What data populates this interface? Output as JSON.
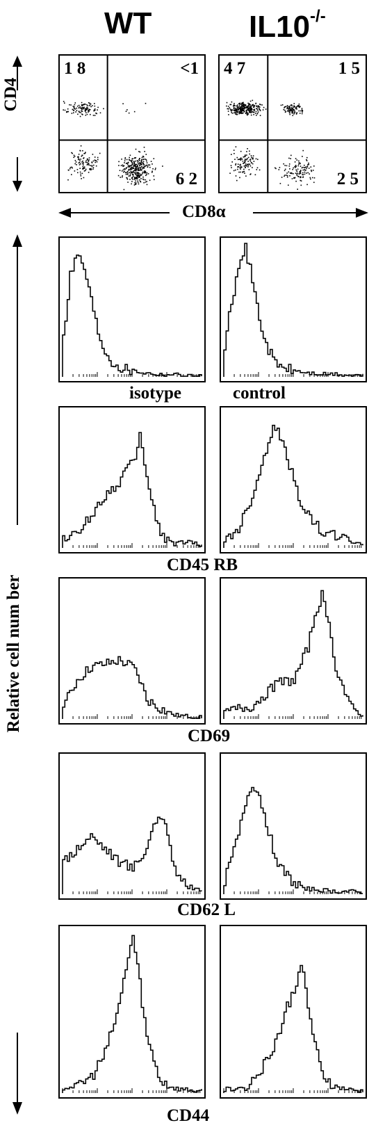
{
  "columns": [
    "WT",
    "IL10",
    "-/-"
  ],
  "dot_axes": {
    "y_label": "CD4",
    "x_label": "CD8α"
  },
  "histogram_y_label": "Relative   cell   num ber",
  "colors": {
    "ink": "#000000",
    "background": "#ffffff"
  },
  "chart_data": [
    {
      "type": "scatter",
      "panel": "WT",
      "y_axis": "CD4",
      "x_axis": "CD8α",
      "quadrants": {
        "upper_left": "1 8",
        "upper_right": "<1",
        "lower_left": "",
        "lower_right": "6 2"
      },
      "quadrant_percentages": {
        "upper_left": 18,
        "upper_right": 1,
        "lower_right": 62
      }
    },
    {
      "type": "scatter",
      "panel": "IL10-/-",
      "y_axis": "CD4",
      "x_axis": "CD8α",
      "quadrants": {
        "upper_left": "4 7",
        "upper_right": "1 5",
        "lower_left": "",
        "lower_right": "2 5"
      },
      "quadrant_percentages": {
        "upper_left": 47,
        "upper_right": 15,
        "lower_right": 25
      }
    },
    {
      "type": "line",
      "row_label_left": "isotype",
      "row_label_right": "control",
      "series": [
        {
          "name": "WT",
          "x": [
            0,
            0.05,
            0.1,
            0.15,
            0.2,
            0.25,
            0.3,
            0.35,
            0.4,
            0.5,
            0.6,
            0.7,
            0.8,
            0.9,
            1.0
          ],
          "values": [
            0.3,
            0.8,
            0.95,
            0.85,
            0.6,
            0.35,
            0.2,
            0.12,
            0.08,
            0.05,
            0.03,
            0.02,
            0.02,
            0.01,
            0.01
          ]
        },
        {
          "name": "IL10-/-",
          "x": [
            0,
            0.05,
            0.1,
            0.15,
            0.2,
            0.25,
            0.3,
            0.35,
            0.4,
            0.5,
            0.6,
            0.7,
            0.8,
            0.9,
            1.0
          ],
          "values": [
            0.2,
            0.6,
            0.8,
            1.0,
            0.75,
            0.45,
            0.25,
            0.14,
            0.08,
            0.05,
            0.03,
            0.02,
            0.02,
            0.01,
            0.01
          ]
        }
      ]
    },
    {
      "type": "line",
      "row_label": "CD45 RB",
      "series": [
        {
          "name": "WT",
          "x": [
            0,
            0.1,
            0.2,
            0.3,
            0.4,
            0.45,
            0.5,
            0.55,
            0.6,
            0.65,
            0.7,
            0.8,
            0.9,
            1.0
          ],
          "values": [
            0.08,
            0.1,
            0.25,
            0.4,
            0.5,
            0.6,
            0.65,
            0.85,
            0.55,
            0.3,
            0.1,
            0.03,
            0.05,
            0.02
          ]
        },
        {
          "name": "IL10-/-",
          "x": [
            0,
            0.1,
            0.2,
            0.3,
            0.35,
            0.4,
            0.45,
            0.5,
            0.55,
            0.6,
            0.7,
            0.8,
            0.9,
            1.0
          ],
          "values": [
            0.05,
            0.15,
            0.4,
            0.75,
            0.95,
            0.85,
            0.7,
            0.5,
            0.35,
            0.25,
            0.12,
            0.1,
            0.05,
            0.03
          ]
        }
      ]
    },
    {
      "type": "line",
      "row_label": "CD69",
      "series": [
        {
          "name": "WT",
          "x": [
            0,
            0.1,
            0.2,
            0.3,
            0.4,
            0.5,
            0.55,
            0.6,
            0.7,
            0.8,
            0.9,
            1.0
          ],
          "values": [
            0.1,
            0.3,
            0.4,
            0.42,
            0.45,
            0.4,
            0.3,
            0.15,
            0.08,
            0.03,
            0.02,
            0.01
          ]
        },
        {
          "name": "IL10-/-",
          "x": [
            0,
            0.1,
            0.2,
            0.3,
            0.4,
            0.5,
            0.6,
            0.65,
            0.7,
            0.75,
            0.8,
            0.9,
            1.0
          ],
          "values": [
            0.05,
            0.08,
            0.1,
            0.2,
            0.28,
            0.3,
            0.55,
            0.8,
            0.95,
            0.7,
            0.4,
            0.1,
            0.02
          ]
        }
      ]
    },
    {
      "type": "line",
      "row_label": "CD62 L",
      "series": [
        {
          "name": "WT",
          "x": [
            0,
            0.1,
            0.2,
            0.3,
            0.4,
            0.5,
            0.6,
            0.65,
            0.7,
            0.75,
            0.8,
            0.9,
            1.0
          ],
          "values": [
            0.25,
            0.35,
            0.45,
            0.35,
            0.25,
            0.2,
            0.35,
            0.55,
            0.6,
            0.45,
            0.2,
            0.06,
            0.03
          ]
        },
        {
          "name": "IL10-/-",
          "x": [
            0,
            0.1,
            0.15,
            0.2,
            0.25,
            0.3,
            0.35,
            0.4,
            0.5,
            0.6,
            0.7,
            0.8,
            0.9,
            1.0
          ],
          "values": [
            0.1,
            0.45,
            0.7,
            0.85,
            0.75,
            0.55,
            0.35,
            0.2,
            0.08,
            0.04,
            0.03,
            0.02,
            0.02,
            0.01
          ]
        }
      ]
    },
    {
      "type": "line",
      "row_label": "CD44",
      "series": [
        {
          "name": "WT",
          "x": [
            0,
            0.1,
            0.2,
            0.3,
            0.4,
            0.45,
            0.5,
            0.55,
            0.6,
            0.7,
            0.8,
            0.9,
            1.0
          ],
          "values": [
            0.03,
            0.05,
            0.1,
            0.25,
            0.55,
            0.8,
            1.0,
            0.7,
            0.35,
            0.08,
            0.03,
            0.02,
            0.01
          ]
        },
        {
          "name": "IL10-/-",
          "x": [
            0,
            0.1,
            0.2,
            0.3,
            0.4,
            0.45,
            0.5,
            0.55,
            0.6,
            0.65,
            0.7,
            0.8,
            0.9,
            1.0
          ],
          "values": [
            0.02,
            0.03,
            0.08,
            0.2,
            0.4,
            0.55,
            0.65,
            0.85,
            0.55,
            0.3,
            0.12,
            0.04,
            0.02,
            0.01
          ]
        }
      ]
    }
  ]
}
